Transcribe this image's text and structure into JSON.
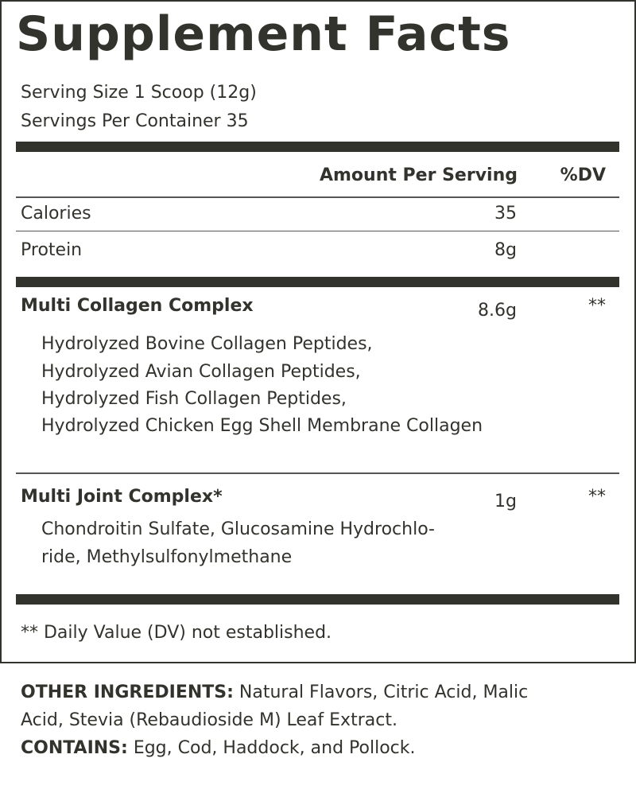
{
  "title": "Supplement Facts",
  "serving_size": "Serving Size 1 Scoop (12g)",
  "servings_per_container": "Servings Per Container 35",
  "header": {
    "amount": "Amount Per Serving",
    "dv": "%DV"
  },
  "rows": [
    {
      "label": "Calories",
      "amount": "35"
    },
    {
      "label": "Protein",
      "amount": "8g"
    }
  ],
  "blends": [
    {
      "name": "Multi Collagen Complex",
      "amount": "8.6g",
      "dv": "**",
      "ingredients": [
        "Hydrolyzed Bovine Collagen Peptides,",
        "Hydrolyzed Avian Collagen Peptides,",
        "Hydrolyzed Fish Collagen Peptides,",
        "Hydrolyzed Chicken Egg Shell Membrane Collagen"
      ]
    },
    {
      "name": "Multi Joint Complex*",
      "amount": "1g",
      "dv": "**",
      "ingredients": [
        "Chondroitin Sulfate, Glucosamine Hydrochlo-",
        "ride, Methylsulfonylmethane"
      ]
    }
  ],
  "footnote": "** Daily Value (DV) not established.",
  "other": {
    "label": "OTHER INGREDIENTS:",
    "line1": " Natural Flavors, Citric Acid, Malic",
    "line2": "Acid, Stevia (Rebaudioside M) Leaf Extract."
  },
  "contains": {
    "label": "CONTAINS:",
    "text": " Egg, Cod, Haddock, and Pollock."
  }
}
